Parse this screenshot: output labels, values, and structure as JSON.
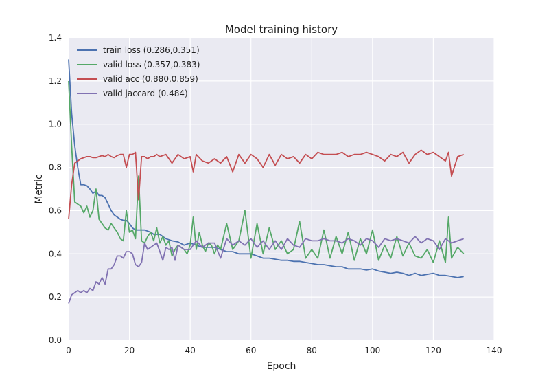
{
  "chart_data": {
    "type": "line",
    "title": "Model training history",
    "xlabel": "Epoch",
    "ylabel": "Metric",
    "xlim": [
      0,
      140
    ],
    "ylim": [
      0.0,
      1.4
    ],
    "xticks": [
      "0",
      "20",
      "40",
      "60",
      "80",
      "100",
      "120",
      "140"
    ],
    "yticks": [
      "0.0",
      "0.2",
      "0.4",
      "0.6",
      "0.8",
      "1.0",
      "1.2",
      "1.4"
    ],
    "grid": true,
    "legend_position": "top-left",
    "background": "#eaeaf2",
    "series": [
      {
        "name": "train loss (0.286,0.351)",
        "color": "#4c72b0",
        "x": [
          0,
          1,
          2,
          3,
          4,
          5,
          6,
          7,
          8,
          9,
          10,
          11,
          12,
          13,
          14,
          15,
          16,
          17,
          18,
          19,
          20,
          21,
          22,
          23,
          24,
          25,
          26,
          27,
          28,
          29,
          30,
          32,
          34,
          36,
          38,
          40,
          42,
          44,
          46,
          48,
          50,
          52,
          54,
          56,
          58,
          60,
          62,
          64,
          66,
          68,
          70,
          72,
          74,
          76,
          78,
          80,
          82,
          84,
          86,
          88,
          90,
          92,
          94,
          96,
          98,
          100,
          102,
          104,
          106,
          108,
          110,
          112,
          114,
          116,
          118,
          120,
          122,
          124,
          126,
          128,
          130
        ],
        "y": [
          1.3,
          1.05,
          0.9,
          0.8,
          0.72,
          0.72,
          0.715,
          0.7,
          0.68,
          0.69,
          0.67,
          0.67,
          0.66,
          0.63,
          0.6,
          0.58,
          0.57,
          0.56,
          0.555,
          0.555,
          0.54,
          0.52,
          0.51,
          0.51,
          0.51,
          0.51,
          0.505,
          0.5,
          0.49,
          0.49,
          0.49,
          0.47,
          0.46,
          0.455,
          0.44,
          0.45,
          0.44,
          0.43,
          0.43,
          0.43,
          0.42,
          0.41,
          0.41,
          0.4,
          0.4,
          0.4,
          0.39,
          0.38,
          0.38,
          0.375,
          0.37,
          0.37,
          0.365,
          0.365,
          0.36,
          0.355,
          0.35,
          0.35,
          0.345,
          0.34,
          0.34,
          0.33,
          0.33,
          0.33,
          0.325,
          0.33,
          0.32,
          0.315,
          0.31,
          0.315,
          0.31,
          0.3,
          0.31,
          0.3,
          0.305,
          0.31,
          0.3,
          0.3,
          0.295,
          0.29,
          0.295
        ]
      },
      {
        "name": "valid loss (0.357,0.383)",
        "color": "#55a868",
        "x": [
          0,
          1,
          2,
          3,
          4,
          5,
          6,
          7,
          8,
          9,
          10,
          11,
          12,
          13,
          14,
          15,
          16,
          17,
          18,
          19,
          20,
          21,
          22,
          23,
          24,
          25,
          26,
          27,
          28,
          29,
          30,
          31,
          32,
          33,
          34,
          35,
          36,
          37,
          38,
          39,
          40,
          41,
          42,
          43,
          44,
          45,
          46,
          47,
          48,
          49,
          50,
          52,
          54,
          56,
          58,
          60,
          62,
          64,
          66,
          68,
          70,
          72,
          74,
          76,
          78,
          80,
          82,
          84,
          86,
          88,
          90,
          92,
          94,
          96,
          98,
          100,
          102,
          104,
          106,
          108,
          110,
          112,
          114,
          116,
          118,
          120,
          122,
          124,
          125,
          126,
          128,
          130
        ],
        "y": [
          1.2,
          0.9,
          0.64,
          0.63,
          0.62,
          0.59,
          0.62,
          0.57,
          0.6,
          0.7,
          0.56,
          0.54,
          0.52,
          0.51,
          0.54,
          0.52,
          0.5,
          0.47,
          0.46,
          0.6,
          0.5,
          0.51,
          0.47,
          0.76,
          0.46,
          0.45,
          0.48,
          0.5,
          0.46,
          0.52,
          0.45,
          0.48,
          0.44,
          0.46,
          0.39,
          0.42,
          0.44,
          0.43,
          0.42,
          0.4,
          0.44,
          0.57,
          0.42,
          0.5,
          0.44,
          0.41,
          0.45,
          0.44,
          0.4,
          0.44,
          0.42,
          0.54,
          0.42,
          0.46,
          0.6,
          0.38,
          0.54,
          0.4,
          0.52,
          0.42,
          0.46,
          0.4,
          0.42,
          0.55,
          0.38,
          0.42,
          0.38,
          0.51,
          0.38,
          0.48,
          0.4,
          0.5,
          0.37,
          0.47,
          0.4,
          0.51,
          0.37,
          0.44,
          0.38,
          0.48,
          0.39,
          0.45,
          0.39,
          0.38,
          0.42,
          0.36,
          0.46,
          0.36,
          0.57,
          0.38,
          0.43,
          0.4
        ]
      },
      {
        "name": "valid acc (0.880,0.859)",
        "color": "#c44e52",
        "x": [
          0,
          1,
          2,
          3,
          4,
          5,
          6,
          7,
          8,
          9,
          10,
          11,
          12,
          13,
          14,
          15,
          16,
          17,
          18,
          19,
          20,
          21,
          22,
          23,
          24,
          25,
          26,
          27,
          28,
          29,
          30,
          32,
          34,
          36,
          38,
          40,
          41,
          42,
          44,
          46,
          48,
          50,
          52,
          54,
          56,
          58,
          60,
          62,
          64,
          66,
          68,
          70,
          72,
          74,
          76,
          78,
          80,
          82,
          84,
          86,
          88,
          90,
          92,
          94,
          96,
          98,
          100,
          102,
          104,
          106,
          108,
          110,
          112,
          114,
          116,
          118,
          120,
          122,
          124,
          125,
          126,
          128,
          130
        ],
        "y": [
          0.56,
          0.72,
          0.82,
          0.83,
          0.84,
          0.845,
          0.85,
          0.85,
          0.845,
          0.845,
          0.85,
          0.855,
          0.85,
          0.86,
          0.85,
          0.845,
          0.855,
          0.86,
          0.86,
          0.8,
          0.86,
          0.86,
          0.87,
          0.65,
          0.85,
          0.85,
          0.84,
          0.85,
          0.85,
          0.86,
          0.85,
          0.86,
          0.82,
          0.86,
          0.84,
          0.85,
          0.78,
          0.86,
          0.83,
          0.82,
          0.84,
          0.82,
          0.85,
          0.78,
          0.86,
          0.82,
          0.86,
          0.84,
          0.8,
          0.86,
          0.81,
          0.86,
          0.84,
          0.85,
          0.82,
          0.86,
          0.84,
          0.87,
          0.86,
          0.86,
          0.86,
          0.87,
          0.85,
          0.86,
          0.86,
          0.87,
          0.86,
          0.85,
          0.83,
          0.86,
          0.85,
          0.87,
          0.82,
          0.86,
          0.88,
          0.86,
          0.87,
          0.85,
          0.83,
          0.87,
          0.76,
          0.85,
          0.86
        ]
      },
      {
        "name": "valid jaccard (0.484)",
        "color": "#8172b2",
        "x": [
          0,
          1,
          2,
          3,
          4,
          5,
          6,
          7,
          8,
          9,
          10,
          11,
          12,
          13,
          14,
          15,
          16,
          17,
          18,
          19,
          20,
          21,
          22,
          23,
          24,
          25,
          26,
          27,
          28,
          29,
          30,
          31,
          32,
          33,
          34,
          35,
          36,
          38,
          40,
          42,
          44,
          46,
          48,
          50,
          52,
          54,
          56,
          58,
          60,
          62,
          64,
          66,
          68,
          70,
          72,
          74,
          76,
          78,
          80,
          82,
          84,
          86,
          88,
          90,
          92,
          94,
          96,
          98,
          100,
          102,
          104,
          106,
          108,
          110,
          112,
          114,
          116,
          118,
          120,
          122,
          124,
          126,
          128,
          130
        ],
        "y": [
          0.17,
          0.21,
          0.22,
          0.23,
          0.22,
          0.23,
          0.22,
          0.24,
          0.23,
          0.27,
          0.26,
          0.29,
          0.26,
          0.33,
          0.33,
          0.35,
          0.39,
          0.39,
          0.38,
          0.41,
          0.41,
          0.4,
          0.35,
          0.34,
          0.36,
          0.45,
          0.42,
          0.43,
          0.44,
          0.45,
          0.41,
          0.37,
          0.43,
          0.42,
          0.43,
          0.37,
          0.44,
          0.42,
          0.42,
          0.46,
          0.43,
          0.45,
          0.45,
          0.38,
          0.47,
          0.44,
          0.46,
          0.44,
          0.47,
          0.43,
          0.46,
          0.42,
          0.46,
          0.42,
          0.47,
          0.44,
          0.43,
          0.47,
          0.46,
          0.46,
          0.47,
          0.46,
          0.46,
          0.45,
          0.47,
          0.46,
          0.44,
          0.47,
          0.46,
          0.43,
          0.47,
          0.46,
          0.47,
          0.46,
          0.45,
          0.48,
          0.45,
          0.47,
          0.46,
          0.42,
          0.47,
          0.45,
          0.46,
          0.47
        ]
      }
    ]
  }
}
